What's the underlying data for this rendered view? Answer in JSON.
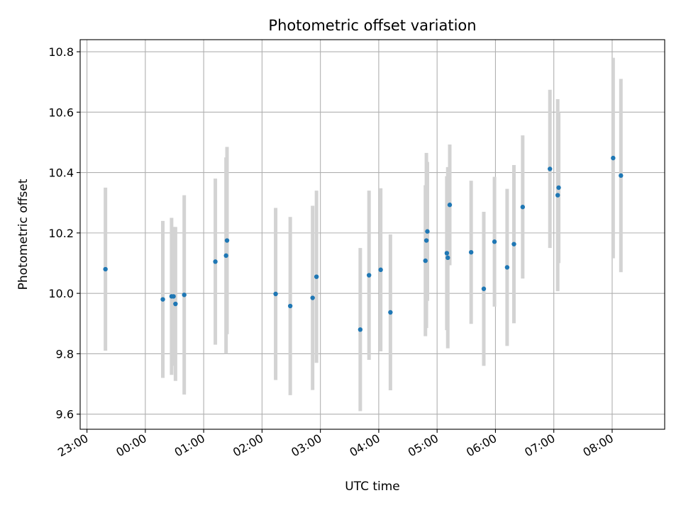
{
  "chart_data": {
    "type": "scatter",
    "title": "Photometric offset variation",
    "xlabel": "UTC time",
    "ylabel": "Photometric offset",
    "x_unit": "UTC time of day (hours past 23:00 start)",
    "xlim": [
      "22:53",
      "08:54"
    ],
    "ylim": [
      9.55,
      10.84
    ],
    "x_ticks": [
      "23:00",
      "00:00",
      "01:00",
      "02:00",
      "03:00",
      "04:00",
      "05:00",
      "06:00",
      "07:00",
      "08:00"
    ],
    "y_ticks": [
      "9.6",
      "9.8",
      "10.0",
      "10.2",
      "10.4",
      "10.6",
      "10.8"
    ],
    "grid": true,
    "colors": {
      "points": "#1f77b4",
      "errorbars": "#d3d3d3",
      "grid": "#b0b0b0",
      "axes": "#000000"
    },
    "points": [
      {
        "x": "23:19",
        "y": 10.08,
        "yerr": 0.27
      },
      {
        "x": "00:18",
        "y": 9.98,
        "yerr": 0.26
      },
      {
        "x": "00:27",
        "y": 9.99,
        "yerr": 0.26
      },
      {
        "x": "00:29",
        "y": 9.99,
        "yerr": 0.23
      },
      {
        "x": "00:31",
        "y": 9.965,
        "yerr": 0.255
      },
      {
        "x": "00:40",
        "y": 9.995,
        "yerr": 0.33
      },
      {
        "x": "01:12",
        "y": 10.105,
        "yerr": 0.275
      },
      {
        "x": "01:23",
        "y": 10.125,
        "yerr": 0.325
      },
      {
        "x": "01:24",
        "y": 10.175,
        "yerr": 0.31
      },
      {
        "x": "02:14",
        "y": 9.998,
        "yerr": 0.285
      },
      {
        "x": "02:29",
        "y": 9.958,
        "yerr": 0.295
      },
      {
        "x": "02:52",
        "y": 9.985,
        "yerr": 0.305
      },
      {
        "x": "02:56",
        "y": 10.055,
        "yerr": 0.285
      },
      {
        "x": "03:41",
        "y": 9.88,
        "yerr": 0.27
      },
      {
        "x": "03:50",
        "y": 10.06,
        "yerr": 0.28
      },
      {
        "x": "04:02",
        "y": 10.078,
        "yerr": 0.27
      },
      {
        "x": "04:12",
        "y": 9.937,
        "yerr": 0.258
      },
      {
        "x": "04:48",
        "y": 10.108,
        "yerr": 0.25
      },
      {
        "x": "04:49",
        "y": 10.175,
        "yerr": 0.29
      },
      {
        "x": "04:50",
        "y": 10.205,
        "yerr": 0.23
      },
      {
        "x": "05:10",
        "y": 10.133,
        "yerr": 0.255
      },
      {
        "x": "05:11",
        "y": 10.118,
        "yerr": 0.3
      },
      {
        "x": "05:13",
        "y": 10.293,
        "yerr": 0.2
      },
      {
        "x": "05:35",
        "y": 10.136,
        "yerr": 0.237
      },
      {
        "x": "05:48",
        "y": 10.015,
        "yerr": 0.255
      },
      {
        "x": "05:59",
        "y": 10.171,
        "yerr": 0.215
      },
      {
        "x": "06:12",
        "y": 10.086,
        "yerr": 0.26
      },
      {
        "x": "06:19",
        "y": 10.163,
        "yerr": 0.262
      },
      {
        "x": "06:28",
        "y": 10.286,
        "yerr": 0.237
      },
      {
        "x": "06:56",
        "y": 10.412,
        "yerr": 0.262
      },
      {
        "x": "07:04",
        "y": 10.325,
        "yerr": 0.318
      },
      {
        "x": "07:05",
        "y": 10.35,
        "yerr": 0.25
      },
      {
        "x": "08:01",
        "y": 10.448,
        "yerr": 0.332
      },
      {
        "x": "08:09",
        "y": 10.39,
        "yerr": 0.32
      }
    ]
  }
}
